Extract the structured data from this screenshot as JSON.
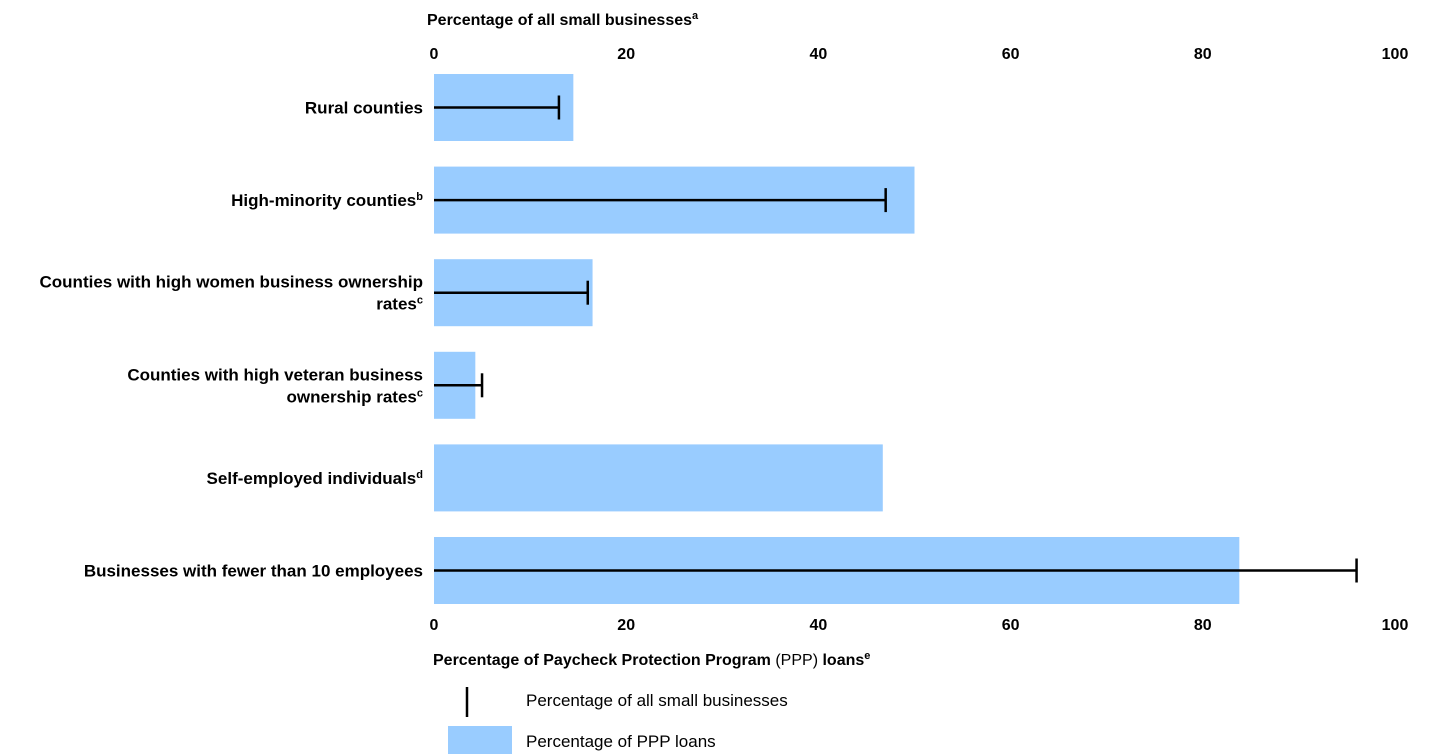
{
  "chart_data": {
    "type": "bar",
    "orientation": "horizontal",
    "categories": [
      {
        "lines": [
          {
            "text": "Rural counties",
            "sup": ""
          }
        ]
      },
      {
        "lines": [
          {
            "text": "High-minority counties",
            "sup": "b"
          }
        ]
      },
      {
        "lines": [
          {
            "text": "Counties with high women business ownership",
            "sup": ""
          },
          {
            "text": "rates",
            "sup": "c"
          }
        ]
      },
      {
        "lines": [
          {
            "text": "Counties with high veteran business",
            "sup": ""
          },
          {
            "text": "ownership rates",
            "sup": "c"
          }
        ]
      },
      {
        "lines": [
          {
            "text": "Self-employed individuals",
            "sup": "d"
          }
        ]
      },
      {
        "lines": [
          {
            "text": "Businesses with fewer than 10 employees",
            "sup": ""
          }
        ]
      }
    ],
    "series": [
      {
        "name": "Percentage of PPP loans",
        "values": [
          14.5,
          50,
          16.5,
          4.3,
          46.7,
          83.8
        ],
        "color": "#99ccff",
        "mark": "bar"
      },
      {
        "name": "Percentage of all small businesses",
        "values": [
          13,
          47,
          16,
          5,
          null,
          96
        ],
        "color": "#000000",
        "mark": "line"
      }
    ],
    "xlim": [
      0,
      100
    ],
    "ticks": [
      0,
      20,
      40,
      60,
      80,
      100
    ],
    "top_axis_label": {
      "text": "Percentage of all small businesses",
      "sup": "a"
    },
    "bottom_axis_label": {
      "bold1": "Percentage of Paycheck Protection Program",
      "normal": " (PPP) ",
      "bold2": "loans",
      "sup": "e"
    },
    "legend_position": "bottom-left"
  }
}
